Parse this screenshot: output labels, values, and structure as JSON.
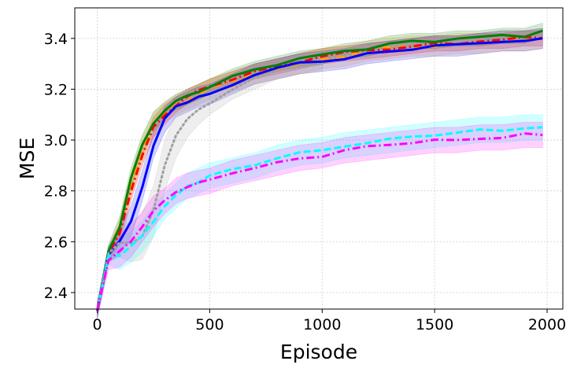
{
  "chart_data": {
    "type": "line",
    "title": "",
    "xlabel": "Episode",
    "ylabel": "MSE",
    "xlim": [
      -100,
      2070
    ],
    "ylim": [
      2.335,
      3.52
    ],
    "xticks": [
      0,
      500,
      1000,
      1500,
      2000
    ],
    "yticks": [
      2.4,
      2.6,
      2.8,
      3.0,
      3.2,
      3.4
    ],
    "xtick_labels": [
      "0",
      "500",
      "1000",
      "1500",
      "2000"
    ],
    "ytick_labels": [
      "2.4",
      "2.6",
      "2.8",
      "3.0",
      "3.2",
      "3.4"
    ],
    "grid": true,
    "legend": "none",
    "series": [
      {
        "color": "#ffa500",
        "style": "dashdot",
        "x": [
          0,
          50,
          100,
          150,
          200,
          250,
          300,
          350,
          400,
          450,
          500,
          600,
          700,
          800,
          900,
          1000,
          1100,
          1200,
          1300,
          1400,
          1500,
          1600,
          1700,
          1800,
          1900,
          1980
        ],
        "y": [
          2.33,
          2.55,
          2.65,
          2.82,
          2.96,
          3.06,
          3.11,
          3.14,
          3.16,
          3.18,
          3.2,
          3.23,
          3.26,
          3.28,
          3.3,
          3.32,
          3.33,
          3.35,
          3.36,
          3.37,
          3.37,
          3.38,
          3.38,
          3.39,
          3.39,
          3.4
        ],
        "band": [
          0.03,
          0.03,
          0.04,
          0.05,
          0.05,
          0.05,
          0.04,
          0.04,
          0.04,
          0.04,
          0.04,
          0.04,
          0.04,
          0.04,
          0.04,
          0.04,
          0.04,
          0.04,
          0.04,
          0.04,
          0.04,
          0.04,
          0.04,
          0.04,
          0.04,
          0.04
        ]
      },
      {
        "color": "#ff0000",
        "style": "dashdot",
        "x": [
          0,
          50,
          100,
          150,
          200,
          250,
          300,
          350,
          400,
          450,
          500,
          600,
          700,
          800,
          900,
          1000,
          1100,
          1200,
          1300,
          1400,
          1500,
          1600,
          1700,
          1800,
          1900,
          1980
        ],
        "y": [
          2.33,
          2.55,
          2.63,
          2.8,
          2.94,
          3.05,
          3.1,
          3.14,
          3.17,
          3.19,
          3.21,
          3.24,
          3.27,
          3.29,
          3.31,
          3.33,
          3.34,
          3.35,
          3.36,
          3.37,
          3.38,
          3.38,
          3.39,
          3.39,
          3.4,
          3.4
        ],
        "band": [
          0.03,
          0.03,
          0.04,
          0.04,
          0.04,
          0.04,
          0.04,
          0.03,
          0.03,
          0.03,
          0.03,
          0.03,
          0.03,
          0.03,
          0.03,
          0.03,
          0.03,
          0.03,
          0.03,
          0.03,
          0.03,
          0.03,
          0.03,
          0.03,
          0.03,
          0.03
        ]
      },
      {
        "color": "#008000",
        "style": "solid",
        "x": [
          0,
          50,
          100,
          150,
          200,
          250,
          300,
          350,
          400,
          450,
          500,
          600,
          700,
          800,
          900,
          1000,
          1100,
          1200,
          1300,
          1400,
          1500,
          1600,
          1700,
          1800,
          1900,
          1980
        ],
        "y": [
          2.33,
          2.56,
          2.66,
          2.85,
          2.98,
          3.07,
          3.12,
          3.15,
          3.17,
          3.19,
          3.21,
          3.25,
          3.28,
          3.3,
          3.32,
          3.33,
          3.35,
          3.36,
          3.38,
          3.39,
          3.39,
          3.4,
          3.4,
          3.41,
          3.41,
          3.43
        ],
        "band": [
          0.03,
          0.03,
          0.04,
          0.04,
          0.04,
          0.04,
          0.03,
          0.03,
          0.03,
          0.03,
          0.03,
          0.03,
          0.03,
          0.03,
          0.03,
          0.03,
          0.03,
          0.03,
          0.03,
          0.03,
          0.03,
          0.03,
          0.03,
          0.03,
          0.03,
          0.03
        ]
      },
      {
        "color": "#0000ff",
        "style": "solid",
        "x": [
          0,
          50,
          100,
          150,
          200,
          250,
          300,
          350,
          400,
          450,
          500,
          600,
          700,
          800,
          900,
          1000,
          1100,
          1200,
          1300,
          1400,
          1500,
          1600,
          1700,
          1800,
          1900,
          1980
        ],
        "y": [
          2.33,
          2.55,
          2.6,
          2.68,
          2.82,
          2.98,
          3.08,
          3.13,
          3.15,
          3.17,
          3.18,
          3.22,
          3.26,
          3.28,
          3.3,
          3.31,
          3.32,
          3.34,
          3.35,
          3.36,
          3.37,
          3.37,
          3.38,
          3.39,
          3.39,
          3.4
        ],
        "band": [
          0.03,
          0.03,
          0.05,
          0.06,
          0.06,
          0.05,
          0.05,
          0.04,
          0.04,
          0.04,
          0.04,
          0.04,
          0.04,
          0.04,
          0.04,
          0.04,
          0.04,
          0.04,
          0.04,
          0.04,
          0.04,
          0.04,
          0.04,
          0.04,
          0.04,
          0.04
        ]
      },
      {
        "color": "#a0a0a0",
        "style": "dotted",
        "x": [
          0,
          50,
          100,
          150,
          200,
          250,
          300,
          350,
          400,
          450,
          500,
          600,
          700,
          800,
          900,
          1000
        ],
        "y": [
          2.33,
          2.55,
          2.6,
          2.6,
          2.62,
          2.72,
          2.9,
          3.02,
          3.08,
          3.12,
          3.15,
          3.2,
          3.24,
          3.27,
          3.29,
          3.3
        ],
        "band": [
          0.03,
          0.03,
          0.06,
          0.08,
          0.09,
          0.1,
          0.1,
          0.09,
          0.07,
          0.06,
          0.05,
          0.04,
          0.04,
          0.03,
          0.03,
          0.03
        ]
      },
      {
        "color": "#00ffff",
        "style": "dashed",
        "x": [
          0,
          50,
          100,
          150,
          200,
          250,
          300,
          350,
          400,
          450,
          500,
          600,
          700,
          800,
          900,
          1000,
          1100,
          1200,
          1300,
          1400,
          1500,
          1600,
          1700,
          1800,
          1900,
          1980
        ],
        "y": [
          2.33,
          2.55,
          2.55,
          2.58,
          2.62,
          2.68,
          2.74,
          2.78,
          2.82,
          2.84,
          2.86,
          2.88,
          2.9,
          2.93,
          2.95,
          2.96,
          2.98,
          2.99,
          3.0,
          3.01,
          3.02,
          3.03,
          3.04,
          3.04,
          3.05,
          3.05
        ],
        "band": [
          0.03,
          0.04,
          0.06,
          0.06,
          0.06,
          0.06,
          0.05,
          0.05,
          0.05,
          0.05,
          0.05,
          0.05,
          0.05,
          0.05,
          0.05,
          0.05,
          0.05,
          0.05,
          0.05,
          0.05,
          0.05,
          0.05,
          0.05,
          0.05,
          0.05,
          0.05
        ]
      },
      {
        "color": "#ff00ff",
        "style": "dashdot",
        "x": [
          0,
          50,
          100,
          150,
          200,
          250,
          300,
          350,
          400,
          450,
          500,
          600,
          700,
          800,
          900,
          1000,
          1100,
          1200,
          1300,
          1400,
          1500,
          1600,
          1700,
          1800,
          1900,
          1980
        ],
        "y": [
          2.33,
          2.53,
          2.56,
          2.6,
          2.66,
          2.72,
          2.76,
          2.8,
          2.82,
          2.83,
          2.84,
          2.87,
          2.89,
          2.91,
          2.93,
          2.94,
          2.96,
          2.97,
          2.98,
          2.99,
          3.0,
          3.0,
          3.01,
          3.01,
          3.02,
          3.02
        ],
        "band": [
          0.03,
          0.04,
          0.06,
          0.06,
          0.06,
          0.06,
          0.05,
          0.05,
          0.05,
          0.05,
          0.05,
          0.05,
          0.05,
          0.05,
          0.05,
          0.05,
          0.05,
          0.05,
          0.05,
          0.05,
          0.05,
          0.05,
          0.05,
          0.05,
          0.05,
          0.05
        ]
      }
    ]
  }
}
